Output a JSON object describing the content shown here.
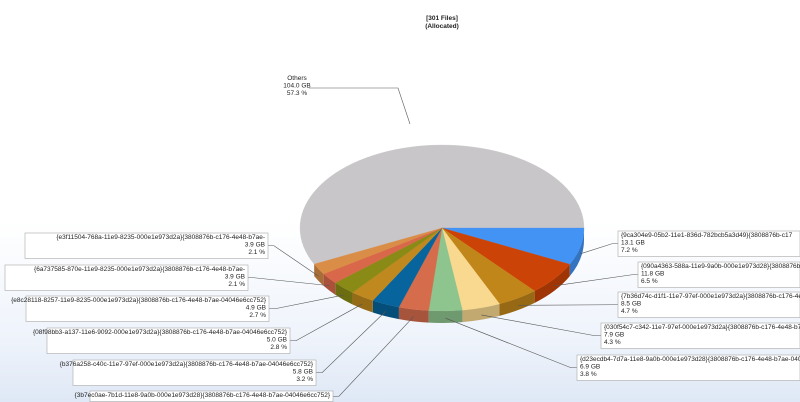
{
  "chart_data": {
    "type": "pie",
    "title": "[301 Files]",
    "subtitle": "(Allocated)",
    "slices": [
      {
        "label": "Others",
        "value_text": "104.0 GB",
        "percent_text": "57.3 %",
        "value": 104.0,
        "percent": 57.3,
        "color": "#c8c6c8"
      },
      {
        "label": "{9ca304e9-05b2-11e1-836d-782bcb5a3d49}{3808876b-c17",
        "value_text": "13.1 GB",
        "percent_text": "7.2 %",
        "value": 13.1,
        "percent": 7.2,
        "color": "#4393f5"
      },
      {
        "label": "{090a4363-588a-11e9-9a0b-000e1e973d28}{3808876b-c176-",
        "value_text": "11.8 GB",
        "percent_text": "6.5 %",
        "value": 11.8,
        "percent": 6.5,
        "color": "#cc4307"
      },
      {
        "label": "{7b36d74c-d1f1-11e7-97ef-000e1e973d2a}{3808876b-c176-4e48-b7",
        "value_text": "8.5 GB",
        "percent_text": "4.7 %",
        "value": 8.5,
        "percent": 4.7,
        "color": "#c1861a"
      },
      {
        "label": "{030f54c7-c342-11e7-97ef-000e1e973d2a}{3808876b-c176-4e48-b7ae-04046",
        "value_text": "7.9 GB",
        "percent_text": "4.3 %",
        "value": 7.9,
        "percent": 4.3,
        "color": "#f9d98f"
      },
      {
        "label": "{d23ecdb4-7d7a-11e8-9a0b-000e1e973d28}{3808876b-c176-4e48-b7ae-04046e6cc7",
        "value_text": "6.9 GB",
        "percent_text": "3.8 %",
        "value": 6.9,
        "percent": 3.8,
        "color": "#8ec48d"
      },
      {
        "label": "{3b7ec0ae-7b1d-11e8-9a0b-000e1e973d28}{3808876b-c176-4e48-b7ae-04046e6cc752}",
        "value_text": "",
        "percent_text": "",
        "value": 6.2,
        "percent": 3.4,
        "color": "#d56c4b"
      },
      {
        "label": "{b376a258-c40c-11e7-97ef-000e1e973d2a}{3808876b-c176-4e48-b7ae-04046e6cc752}",
        "value_text": "5.8 GB",
        "percent_text": "3.2 %",
        "value": 5.8,
        "percent": 3.2,
        "color": "#08649c"
      },
      {
        "label": "{08f98bb3-a137-11e6-9092-000e1e973d2a}{3808876b-c176-4e48-b7ae-04046e6cc752}",
        "value_text": "5.0 GB",
        "percent_text": "2.8 %",
        "value": 5.0,
        "percent": 2.8,
        "color": "#c0891f"
      },
      {
        "label": "{e8c28118-8257-11e9-8235-000e1e973d2a}{3808876b-c176-4e48-b7ae-04046e6cc752}",
        "value_text": "4.9 GB",
        "percent_text": "2.7 %",
        "value": 4.9,
        "percent": 2.7,
        "color": "#8a8a16"
      },
      {
        "label": "{6a737585-870e-11e9-8235-000e1e973d2a}{3808876b-c176-4e48-b7ae-",
        "value_text": "3.9 GB",
        "percent_text": "2.1 %",
        "value": 3.9,
        "percent": 2.1,
        "color": "#d9684a"
      },
      {
        "label": "{e3f11504-768a-11e9-8235-000e1e973d2a}{3808876b-c176-4e48-b7ae-",
        "value_text": "3.9 GB",
        "percent_text": "2.1 %",
        "value": 3.9,
        "percent": 2.1,
        "color": "#d98d47"
      }
    ]
  }
}
